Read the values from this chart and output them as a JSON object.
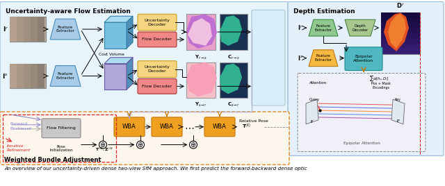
{
  "figsize": [
    6.4,
    2.68
  ],
  "dpi": 100,
  "caption": "An overview of our uncertainty-driven dense two-view SfM approach. We first predict the forward-backward dense optic",
  "sec_title_left": "Uncertainty-aware Flow Estimation",
  "sec_title_right": "Depth Estimation",
  "sec_title_bottom": "Weighted Bundle Adjustment",
  "panel_left_bg": "#deeef8",
  "panel_right_bg": "#ddeef8",
  "panel_bottom_bg": "#fdf6ec",
  "unc_dec_fc": "#f5d580",
  "unc_dec_ec": "#c8a020",
  "flow_dec_fc": "#f08888",
  "flow_dec_ec": "#b03030",
  "wba_fc": "#f0a020",
  "wba_ec": "#c07800",
  "feat_ext_left_fc": "#a8cce8",
  "feat_ext_left_ec": "#4488bb",
  "feat_ext_right_top_fc": "#90c890",
  "feat_ext_right_top_ec": "#3a8840",
  "feat_ext_right_bot_fc": "#f5b840",
  "feat_ext_right_bot_ec": "#c07810",
  "depth_dec_fc": "#a8c890",
  "depth_dec_ec": "#4a8040",
  "epi_att_fc": "#50b8c0",
  "epi_att_ec": "#208890",
  "cost_vol_top_fc": "#78c0e0",
  "cost_vol_top_ec": "#3080a8",
  "cost_vol_bot_fc": "#b0a8d8",
  "cost_vol_bot_ec": "#6858a0",
  "flow_filter_fc": "#c8c8c8",
  "flow_filter_ec": "#888888"
}
